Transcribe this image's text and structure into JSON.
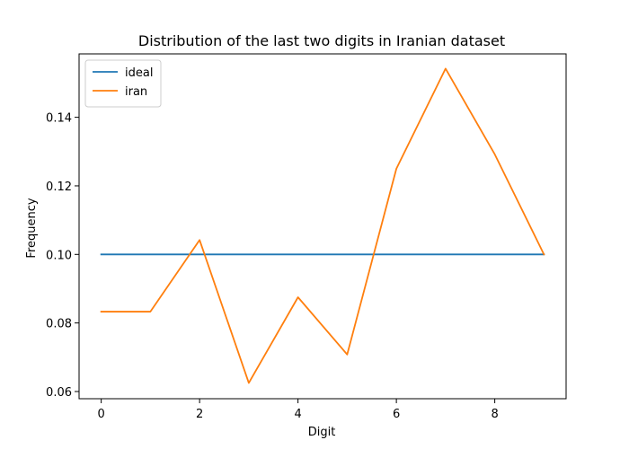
{
  "chart_data": {
    "type": "line",
    "title": "Distribution of the last two digits in Iranian dataset",
    "xlabel": "Digit",
    "ylabel": "Frequency",
    "x": [
      0,
      1,
      2,
      3,
      4,
      5,
      6,
      7,
      8,
      9
    ],
    "xlim": [
      -0.45,
      9.45
    ],
    "ylim": [
      0.0579,
      0.1585
    ],
    "xticks": [
      0,
      2,
      4,
      6,
      8
    ],
    "xtick_labels": [
      "0",
      "2",
      "4",
      "6",
      "8"
    ],
    "yticks": [
      0.06,
      0.08,
      0.1,
      0.12,
      0.14
    ],
    "ytick_labels": [
      "0.06",
      "0.08",
      "0.10",
      "0.12",
      "0.14"
    ],
    "grid": false,
    "legend_position": "top-left",
    "series": [
      {
        "name": "ideal",
        "color": "#1f77b4",
        "values": [
          0.1,
          0.1,
          0.1,
          0.1,
          0.1,
          0.1,
          0.1,
          0.1,
          0.1,
          0.1
        ]
      },
      {
        "name": "iran",
        "color": "#ff7f0e",
        "values": [
          0.0833,
          0.0833,
          0.1042,
          0.0625,
          0.0875,
          0.0708,
          0.125,
          0.1542,
          0.1292,
          0.1
        ]
      }
    ]
  }
}
